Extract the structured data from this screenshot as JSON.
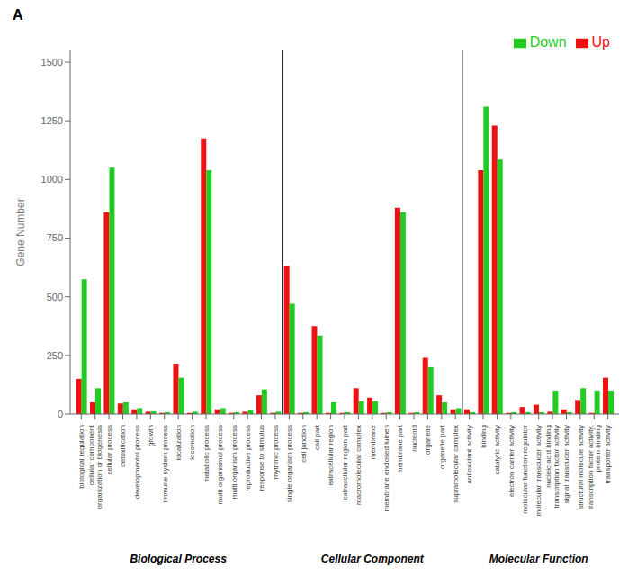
{
  "chart_data": {
    "type": "bar",
    "title": "A",
    "categories": [
      "biological regulation",
      "cellular component\norganization or biogenesis",
      "cellular process",
      "detoxification",
      "developmental process",
      "growth",
      "immune system process",
      "localization",
      "locomotion",
      "metabolic process",
      "multi organismal process",
      "multi organism process",
      "reproductive process",
      "response to stimulus",
      "rhythmic process",
      "single organism process",
      "cell junction",
      "cell part",
      "extracellular region",
      "extracellular region part",
      "macromolecular complex",
      "membrane",
      "membrane enclosed lumen",
      "membrane part",
      "nucleoid",
      "organelle",
      "organelle part",
      "supramolecular complex",
      "antioxidant activity",
      "binding",
      "catalytic activity",
      "electron carrier activity",
      "molecular function regulator",
      "molecular transducer activity",
      "nucleic acid binding\ntranscription factor activity",
      "signal transducer activity",
      "structural molecule activity",
      "transcription factor activity,\nprotein binding",
      "transporter activity"
    ],
    "series": [
      {
        "name": "Up",
        "color": "#ee1111",
        "values": [
          150,
          50,
          860,
          45,
          20,
          10,
          5,
          215,
          5,
          1175,
          20,
          5,
          10,
          80,
          5,
          630,
          5,
          375,
          5,
          5,
          110,
          70,
          5,
          880,
          5,
          240,
          80,
          20,
          20,
          1040,
          1230,
          5,
          30,
          40,
          10,
          20,
          60,
          5,
          155
        ]
      },
      {
        "name": "Down",
        "color": "#22cc22",
        "values": [
          575,
          110,
          1050,
          50,
          25,
          12,
          8,
          155,
          10,
          1040,
          25,
          8,
          15,
          105,
          10,
          470,
          8,
          335,
          50,
          8,
          55,
          55,
          8,
          860,
          8,
          200,
          50,
          25,
          8,
          1310,
          1085,
          8,
          8,
          8,
          100,
          8,
          110,
          100,
          100
        ]
      }
    ],
    "ylabel": "Gene Number",
    "ylim": [
      0,
      1550
    ],
    "yticks": [
      0,
      250,
      500,
      750,
      1000,
      1250,
      1500
    ],
    "legend": "upper right",
    "annotations": [
      {
        "text": "Biological Process",
        "first": "biological regulation",
        "last": "rhythmic process"
      },
      {
        "text": "Cellular Component",
        "first": "single organism process",
        "last": "supramolecular complex"
      },
      {
        "text": "Molecular Function",
        "first": "antioxidant activity",
        "last": "transporter activity"
      }
    ]
  }
}
